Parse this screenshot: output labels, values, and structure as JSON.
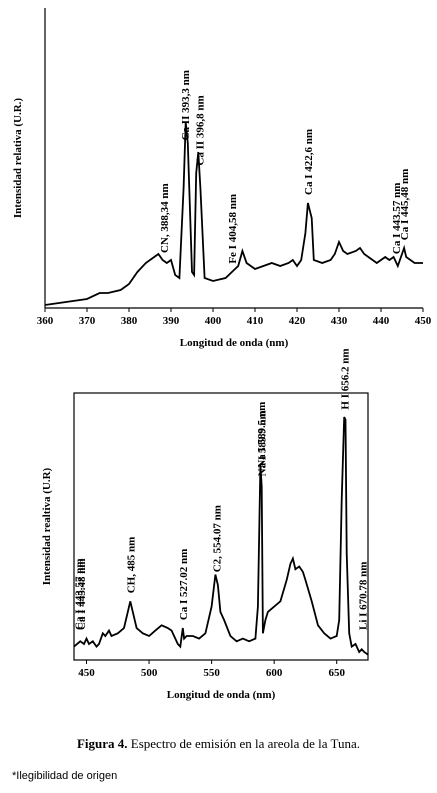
{
  "chart_data": [
    {
      "type": "line",
      "xlabel": "Longitud de onda (nm)",
      "ylabel": "Intensidad relativa (U.R.)",
      "color": "#000000",
      "xlim": [
        360,
        450
      ],
      "xticks": [
        360,
        370,
        380,
        390,
        400,
        410,
        420,
        430,
        440,
        450
      ],
      "ylim": [
        0,
        100
      ],
      "x": [
        360,
        365,
        370,
        373,
        375,
        378,
        380,
        382,
        384,
        386,
        387,
        388,
        389,
        390,
        391,
        392,
        393,
        393.5,
        394,
        395,
        395.5,
        396,
        396.5,
        397,
        398,
        400,
        403,
        404.5,
        406,
        407,
        408,
        409,
        410,
        412,
        414,
        416,
        418,
        419,
        420,
        421,
        422,
        422.6,
        423.5,
        424,
        426,
        428,
        429,
        430,
        431,
        432,
        434,
        435,
        436,
        437,
        439,
        440,
        441,
        442,
        443,
        444,
        445,
        445.5,
        446,
        448,
        450
      ],
      "values": [
        1,
        2,
        3,
        5,
        5,
        6,
        8,
        12,
        15,
        17,
        18,
        16,
        15,
        16,
        11,
        10,
        40,
        62,
        55,
        12,
        11,
        45,
        52,
        40,
        10,
        9,
        10,
        12,
        14,
        19,
        15,
        14,
        13,
        14,
        15,
        14,
        15,
        16,
        14,
        16,
        25,
        35,
        30,
        16,
        15,
        16,
        18,
        22,
        19,
        18,
        19,
        20,
        18,
        17,
        15,
        16,
        17,
        16,
        17,
        14,
        18,
        20,
        17,
        15,
        15
      ],
      "annotations": [
        {
          "text": "CN, 388,34 nm",
          "x": 388.34
        },
        {
          "text": "Ca II 393,3 nm",
          "x": 393.3
        },
        {
          "text": "Ca II 396,8 nm",
          "x": 396.8
        },
        {
          "text": "Fe I 404,58 nm",
          "x": 404.58
        },
        {
          "text": "Ca I 422,6 nm",
          "x": 422.6
        },
        {
          "text": "Ca I 443.57 nm",
          "x": 443.57
        },
        {
          "text": "Ca I 445,48 nm",
          "x": 445.48
        }
      ]
    },
    {
      "type": "line",
      "xlabel": "Longitud de onda (nm)",
      "ylabel": "Intensidad realtiva (U.R)",
      "color": "#000000",
      "xlim": [
        440,
        675
      ],
      "xticks": [
        450,
        500,
        550,
        600,
        650
      ],
      "ylim": [
        0,
        100
      ],
      "x": [
        440,
        445,
        448,
        450,
        452,
        455,
        458,
        460,
        463,
        465,
        468,
        470,
        475,
        480,
        483,
        485,
        487,
        490,
        495,
        500,
        505,
        510,
        515,
        518,
        520,
        523,
        525,
        527,
        528,
        530,
        535,
        540,
        545,
        550,
        553,
        555,
        557,
        560,
        565,
        570,
        575,
        580,
        585,
        587,
        589,
        590,
        591,
        593,
        595,
        600,
        605,
        610,
        613,
        615,
        617,
        620,
        623,
        625,
        630,
        635,
        640,
        645,
        650,
        652,
        654,
        656,
        657,
        658,
        660,
        662,
        665,
        668,
        670,
        672,
        675
      ],
      "values": [
        5,
        7,
        6,
        8,
        6,
        7,
        5,
        6,
        10,
        9,
        11,
        9,
        10,
        12,
        18,
        22,
        18,
        12,
        10,
        9,
        11,
        13,
        12,
        11,
        9,
        6,
        5,
        12,
        8,
        9,
        9,
        8,
        10,
        20,
        32,
        28,
        18,
        15,
        9,
        7,
        8,
        7,
        8,
        20,
        73,
        65,
        10,
        15,
        18,
        20,
        22,
        30,
        36,
        38,
        34,
        35,
        33,
        30,
        22,
        13,
        10,
        8,
        9,
        15,
        60,
        91,
        90,
        40,
        10,
        5,
        6,
        3,
        4,
        3,
        2
      ],
      "annotations": [
        {
          "text": "Ca I 443.57 nm",
          "x": 443.57
        },
        {
          "text": "Ca I 445.48 nm",
          "x": 445.48
        },
        {
          "text": "CH, 485 nm",
          "x": 485
        },
        {
          "text": "Ca I 527.02 nm",
          "x": 527.02
        },
        {
          "text": "C2, 554.07 nm",
          "x": 554.07
        },
        {
          "text": "Na I 589.9 nm",
          "x": 589.9
        },
        {
          "text": "Na I 589.5 nm",
          "x": 589.5
        },
        {
          "text": "H I 656.2 nm",
          "x": 656.2
        },
        {
          "text": "Li I 670.78 nm",
          "x": 670.78
        }
      ]
    }
  ],
  "caption": {
    "label": "Figura 4.",
    "text": "Espectro de emisión en la areola de la Tuna."
  },
  "note": "*Ilegibilidad de origen"
}
